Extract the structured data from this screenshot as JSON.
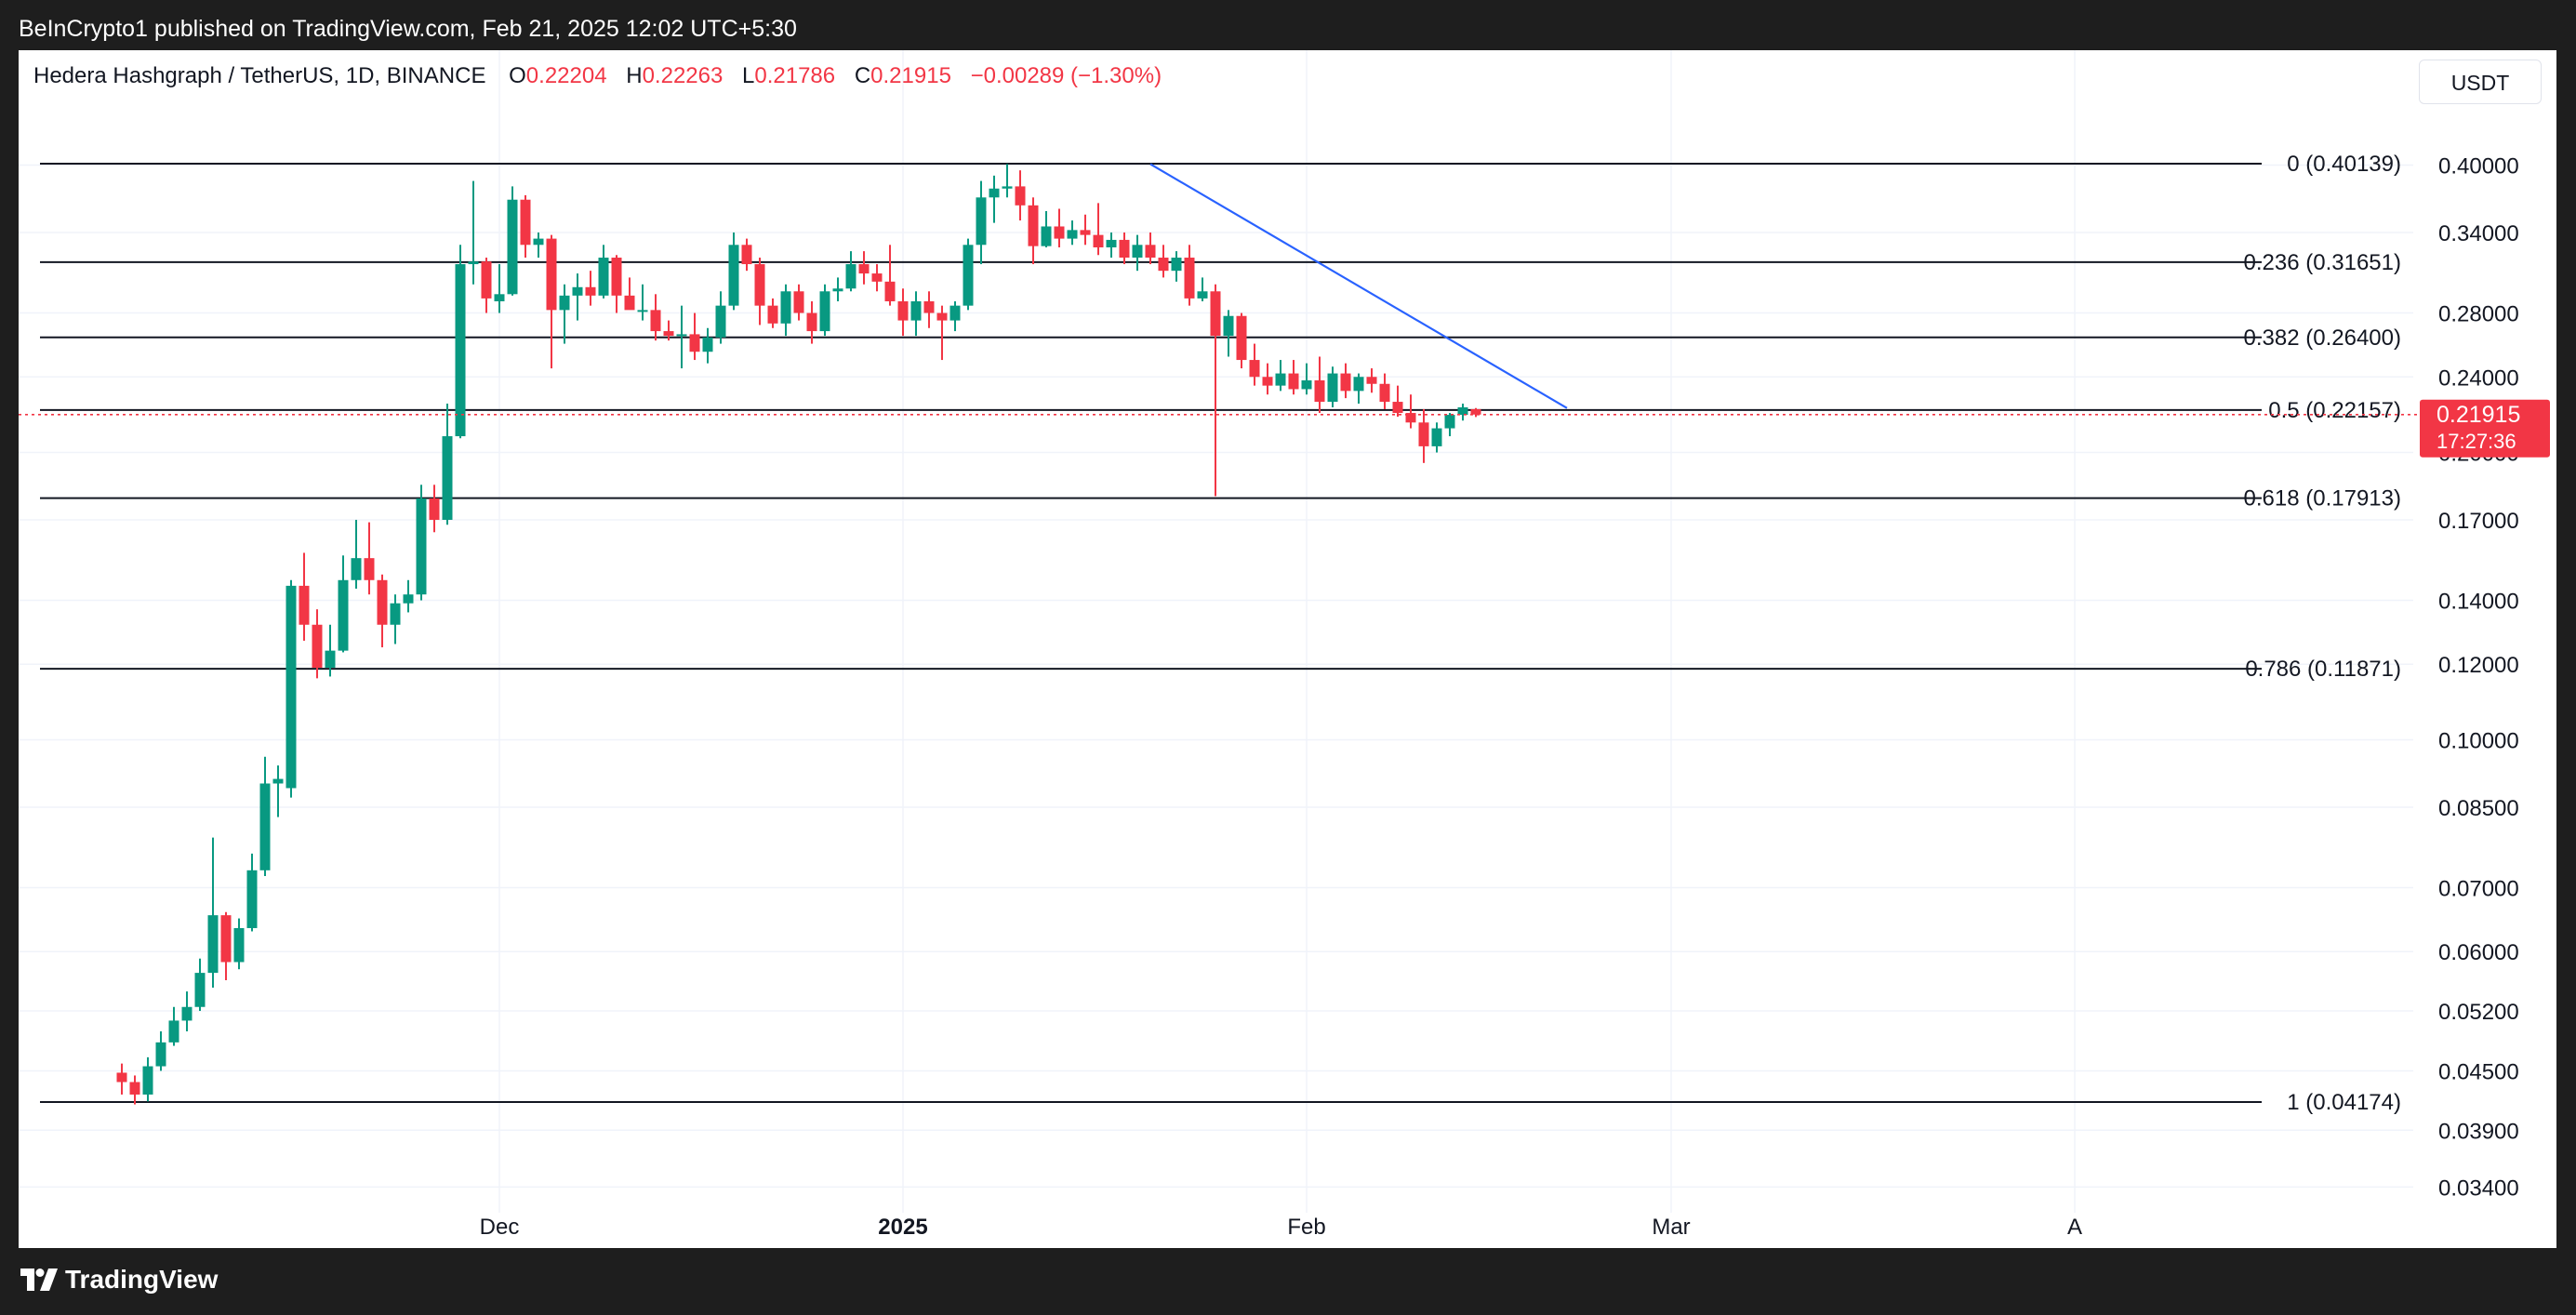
{
  "header": {
    "publisher_line": "BeInCrypto1 published on TradingView.com, Feb 21, 2025 12:02 UTC+5:30"
  },
  "legend": {
    "symbol": "Hedera Hashgraph / TetherUS, 1D, BINANCE",
    "open_label": "O",
    "open": "0.22204",
    "high_label": "H",
    "high": "0.22263",
    "low_label": "L",
    "low": "0.21786",
    "close_label": "C",
    "close": "0.21915",
    "change": "−0.00289 (−1.30%)"
  },
  "currency_button": "USDT",
  "price_tag": {
    "price": "0.21915",
    "countdown": "17:27:36"
  },
  "footer": {
    "brand": "TradingView",
    "logo_icon": "tradingview-logo-icon"
  },
  "colors": {
    "up": "#089981",
    "down": "#f23645",
    "trendline": "#2962ff",
    "fib": "#131722",
    "last_price": "#f23645"
  },
  "chart_data": {
    "type": "candlestick",
    "y_scale": "log",
    "y_ticks": [
      "0.40000",
      "0.34000",
      "0.28000",
      "0.24000",
      "0.20000",
      "0.17000",
      "0.14000",
      "0.12000",
      "0.10000",
      "0.08500",
      "0.07000",
      "0.06000",
      "0.05200",
      "0.04500",
      "0.03900",
      "0.03400"
    ],
    "x_ticks": [
      {
        "label": "Dec",
        "date": "2024-12-01",
        "bold": false
      },
      {
        "label": "2025",
        "date": "2025-01-01",
        "bold": true
      },
      {
        "label": "Feb",
        "date": "2025-02-01",
        "bold": false
      },
      {
        "label": "Mar",
        "date": "2025-03-01",
        "bold": false
      },
      {
        "label": "A",
        "date": "2025-04-01",
        "bold": false
      }
    ],
    "fib_levels": [
      {
        "label": "0 (0.40139)",
        "value": 0.40139
      },
      {
        "label": "0.236 (0.31651)",
        "value": 0.31651
      },
      {
        "label": "0.382 (0.26400)",
        "value": 0.264
      },
      {
        "label": "0.5 (0.22157)",
        "value": 0.22157
      },
      {
        "label": "0.618 (0.17913)",
        "value": 0.17913
      },
      {
        "label": "0.786 (0.11871)",
        "value": 0.11871
      },
      {
        "label": "1 (0.04174)",
        "value": 0.04174
      }
    ],
    "trendline": {
      "from": {
        "date": "2025-01-20",
        "price": 0.401
      },
      "to": {
        "date": "2025-02-21",
        "price": 0.2226
      }
    },
    "last_price": 0.21915,
    "candles": [
      {
        "date": "2024-11-02",
        "o": 0.0448,
        "h": 0.0458,
        "l": 0.0425,
        "c": 0.0438
      },
      {
        "date": "2024-11-03",
        "o": 0.0438,
        "h": 0.0445,
        "l": 0.0415,
        "c": 0.0425
      },
      {
        "date": "2024-11-04",
        "o": 0.0425,
        "h": 0.0465,
        "l": 0.0418,
        "c": 0.0455
      },
      {
        "date": "2024-11-05",
        "o": 0.0455,
        "h": 0.0495,
        "l": 0.045,
        "c": 0.0482
      },
      {
        "date": "2024-11-06",
        "o": 0.0482,
        "h": 0.0525,
        "l": 0.0478,
        "c": 0.0508
      },
      {
        "date": "2024-11-07",
        "o": 0.0508,
        "h": 0.0545,
        "l": 0.0495,
        "c": 0.0525
      },
      {
        "date": "2024-11-08",
        "o": 0.0525,
        "h": 0.059,
        "l": 0.052,
        "c": 0.057
      },
      {
        "date": "2024-11-09",
        "o": 0.057,
        "h": 0.079,
        "l": 0.055,
        "c": 0.0655
      },
      {
        "date": "2024-11-10",
        "o": 0.0655,
        "h": 0.066,
        "l": 0.056,
        "c": 0.0585
      },
      {
        "date": "2024-11-11",
        "o": 0.0585,
        "h": 0.065,
        "l": 0.0575,
        "c": 0.0635
      },
      {
        "date": "2024-11-12",
        "o": 0.0635,
        "h": 0.076,
        "l": 0.063,
        "c": 0.073
      },
      {
        "date": "2024-11-13",
        "o": 0.073,
        "h": 0.096,
        "l": 0.072,
        "c": 0.09
      },
      {
        "date": "2024-11-14",
        "o": 0.09,
        "h": 0.094,
        "l": 0.083,
        "c": 0.091
      },
      {
        "date": "2024-11-15",
        "o": 0.089,
        "h": 0.147,
        "l": 0.087,
        "c": 0.145
      },
      {
        "date": "2024-11-16",
        "o": 0.145,
        "h": 0.157,
        "l": 0.127,
        "c": 0.132
      },
      {
        "date": "2024-11-17",
        "o": 0.132,
        "h": 0.137,
        "l": 0.116,
        "c": 0.119
      },
      {
        "date": "2024-11-18",
        "o": 0.119,
        "h": 0.132,
        "l": 0.1165,
        "c": 0.124
      },
      {
        "date": "2024-11-19",
        "o": 0.124,
        "h": 0.156,
        "l": 0.1235,
        "c": 0.147
      },
      {
        "date": "2024-11-20",
        "o": 0.147,
        "h": 0.17,
        "l": 0.144,
        "c": 0.155
      },
      {
        "date": "2024-11-21",
        "o": 0.155,
        "h": 0.169,
        "l": 0.142,
        "c": 0.147
      },
      {
        "date": "2024-11-22",
        "o": 0.147,
        "h": 0.149,
        "l": 0.125,
        "c": 0.132
      },
      {
        "date": "2024-11-23",
        "o": 0.132,
        "h": 0.142,
        "l": 0.126,
        "c": 0.139
      },
      {
        "date": "2024-11-24",
        "o": 0.139,
        "h": 0.147,
        "l": 0.136,
        "c": 0.142
      },
      {
        "date": "2024-11-25",
        "o": 0.142,
        "h": 0.185,
        "l": 0.14,
        "c": 0.179
      },
      {
        "date": "2024-11-26",
        "o": 0.179,
        "h": 0.185,
        "l": 0.165,
        "c": 0.17
      },
      {
        "date": "2024-11-27",
        "o": 0.17,
        "h": 0.225,
        "l": 0.168,
        "c": 0.208
      },
      {
        "date": "2024-11-28",
        "o": 0.208,
        "h": 0.33,
        "l": 0.207,
        "c": 0.315
      },
      {
        "date": "2024-11-29",
        "o": 0.315,
        "h": 0.385,
        "l": 0.3,
        "c": 0.317
      },
      {
        "date": "2024-11-30",
        "o": 0.317,
        "h": 0.32,
        "l": 0.28,
        "c": 0.29
      },
      {
        "date": "2024-12-01",
        "o": 0.288,
        "h": 0.315,
        "l": 0.28,
        "c": 0.293
      },
      {
        "date": "2024-12-02",
        "o": 0.293,
        "h": 0.38,
        "l": 0.292,
        "c": 0.368
      },
      {
        "date": "2024-12-03",
        "o": 0.368,
        "h": 0.372,
        "l": 0.32,
        "c": 0.33
      },
      {
        "date": "2024-12-04",
        "o": 0.33,
        "h": 0.34,
        "l": 0.32,
        "c": 0.335
      },
      {
        "date": "2024-12-05",
        "o": 0.335,
        "h": 0.338,
        "l": 0.245,
        "c": 0.282
      },
      {
        "date": "2024-12-06",
        "o": 0.282,
        "h": 0.3,
        "l": 0.26,
        "c": 0.292
      },
      {
        "date": "2024-12-07",
        "o": 0.292,
        "h": 0.308,
        "l": 0.275,
        "c": 0.298
      },
      {
        "date": "2024-12-08",
        "o": 0.298,
        "h": 0.31,
        "l": 0.285,
        "c": 0.292
      },
      {
        "date": "2024-12-09",
        "o": 0.292,
        "h": 0.33,
        "l": 0.29,
        "c": 0.32
      },
      {
        "date": "2024-12-10",
        "o": 0.32,
        "h": 0.322,
        "l": 0.28,
        "c": 0.292
      },
      {
        "date": "2024-12-11",
        "o": 0.292,
        "h": 0.305,
        "l": 0.285,
        "c": 0.282
      },
      {
        "date": "2024-12-12",
        "o": 0.282,
        "h": 0.3,
        "l": 0.275,
        "c": 0.282
      },
      {
        "date": "2024-12-13",
        "o": 0.282,
        "h": 0.293,
        "l": 0.262,
        "c": 0.268
      },
      {
        "date": "2024-12-14",
        "o": 0.268,
        "h": 0.275,
        "l": 0.262,
        "c": 0.265
      },
      {
        "date": "2024-12-15",
        "o": 0.265,
        "h": 0.285,
        "l": 0.245,
        "c": 0.266
      },
      {
        "date": "2024-12-16",
        "o": 0.266,
        "h": 0.28,
        "l": 0.25,
        "c": 0.255
      },
      {
        "date": "2024-12-17",
        "o": 0.255,
        "h": 0.27,
        "l": 0.248,
        "c": 0.264
      },
      {
        "date": "2024-12-18",
        "o": 0.264,
        "h": 0.295,
        "l": 0.26,
        "c": 0.285
      },
      {
        "date": "2024-12-19",
        "o": 0.285,
        "h": 0.34,
        "l": 0.282,
        "c": 0.33
      },
      {
        "date": "2024-12-20",
        "o": 0.33,
        "h": 0.335,
        "l": 0.31,
        "c": 0.315
      },
      {
        "date": "2024-12-21",
        "o": 0.315,
        "h": 0.32,
        "l": 0.272,
        "c": 0.285
      },
      {
        "date": "2024-12-22",
        "o": 0.285,
        "h": 0.29,
        "l": 0.27,
        "c": 0.273
      },
      {
        "date": "2024-12-23",
        "o": 0.273,
        "h": 0.3,
        "l": 0.265,
        "c": 0.295
      },
      {
        "date": "2024-12-24",
        "o": 0.295,
        "h": 0.3,
        "l": 0.275,
        "c": 0.28
      },
      {
        "date": "2024-12-25",
        "o": 0.28,
        "h": 0.288,
        "l": 0.26,
        "c": 0.268
      },
      {
        "date": "2024-12-26",
        "o": 0.268,
        "h": 0.3,
        "l": 0.265,
        "c": 0.295
      },
      {
        "date": "2024-12-27",
        "o": 0.295,
        "h": 0.305,
        "l": 0.288,
        "c": 0.297
      },
      {
        "date": "2024-12-28",
        "o": 0.297,
        "h": 0.325,
        "l": 0.295,
        "c": 0.315
      },
      {
        "date": "2024-12-29",
        "o": 0.315,
        "h": 0.325,
        "l": 0.3,
        "c": 0.308
      },
      {
        "date": "2024-12-30",
        "o": 0.308,
        "h": 0.315,
        "l": 0.295,
        "c": 0.302
      },
      {
        "date": "2024-12-31",
        "o": 0.302,
        "h": 0.33,
        "l": 0.285,
        "c": 0.288
      },
      {
        "date": "2025-01-01",
        "o": 0.288,
        "h": 0.297,
        "l": 0.265,
        "c": 0.275
      },
      {
        "date": "2025-01-02",
        "o": 0.275,
        "h": 0.295,
        "l": 0.265,
        "c": 0.288
      },
      {
        "date": "2025-01-03",
        "o": 0.288,
        "h": 0.295,
        "l": 0.27,
        "c": 0.28
      },
      {
        "date": "2025-01-04",
        "o": 0.28,
        "h": 0.285,
        "l": 0.25,
        "c": 0.275
      },
      {
        "date": "2025-01-05",
        "o": 0.275,
        "h": 0.288,
        "l": 0.268,
        "c": 0.285
      },
      {
        "date": "2025-01-06",
        "o": 0.285,
        "h": 0.335,
        "l": 0.282,
        "c": 0.33
      },
      {
        "date": "2025-01-07",
        "o": 0.33,
        "h": 0.385,
        "l": 0.315,
        "c": 0.37
      },
      {
        "date": "2025-01-08",
        "o": 0.37,
        "h": 0.39,
        "l": 0.348,
        "c": 0.378
      },
      {
        "date": "2025-01-09",
        "o": 0.378,
        "h": 0.401,
        "l": 0.37,
        "c": 0.38
      },
      {
        "date": "2025-01-10",
        "o": 0.38,
        "h": 0.395,
        "l": 0.35,
        "c": 0.363
      },
      {
        "date": "2025-01-11",
        "o": 0.363,
        "h": 0.37,
        "l": 0.315,
        "c": 0.329
      },
      {
        "date": "2025-01-12",
        "o": 0.329,
        "h": 0.358,
        "l": 0.328,
        "c": 0.345
      },
      {
        "date": "2025-01-13",
        "o": 0.345,
        "h": 0.36,
        "l": 0.328,
        "c": 0.335
      },
      {
        "date": "2025-01-14",
        "o": 0.335,
        "h": 0.35,
        "l": 0.33,
        "c": 0.342
      },
      {
        "date": "2025-01-15",
        "o": 0.342,
        "h": 0.355,
        "l": 0.33,
        "c": 0.338
      },
      {
        "date": "2025-01-16",
        "o": 0.338,
        "h": 0.365,
        "l": 0.322,
        "c": 0.328
      },
      {
        "date": "2025-01-17",
        "o": 0.328,
        "h": 0.34,
        "l": 0.32,
        "c": 0.334
      },
      {
        "date": "2025-01-18",
        "o": 0.334,
        "h": 0.34,
        "l": 0.315,
        "c": 0.32
      },
      {
        "date": "2025-01-19",
        "o": 0.32,
        "h": 0.338,
        "l": 0.31,
        "c": 0.33
      },
      {
        "date": "2025-01-20",
        "o": 0.33,
        "h": 0.34,
        "l": 0.315,
        "c": 0.32
      },
      {
        "date": "2025-01-21",
        "o": 0.32,
        "h": 0.33,
        "l": 0.305,
        "c": 0.31
      },
      {
        "date": "2025-01-22",
        "o": 0.31,
        "h": 0.325,
        "l": 0.302,
        "c": 0.32
      },
      {
        "date": "2025-01-23",
        "o": 0.32,
        "h": 0.33,
        "l": 0.285,
        "c": 0.29
      },
      {
        "date": "2025-01-24",
        "o": 0.29,
        "h": 0.305,
        "l": 0.288,
        "c": 0.295
      },
      {
        "date": "2025-01-25",
        "o": 0.295,
        "h": 0.3,
        "l": 0.18,
        "c": 0.265
      },
      {
        "date": "2025-01-26",
        "o": 0.265,
        "h": 0.282,
        "l": 0.252,
        "c": 0.278
      },
      {
        "date": "2025-01-27",
        "o": 0.278,
        "h": 0.28,
        "l": 0.245,
        "c": 0.25
      },
      {
        "date": "2025-01-28",
        "o": 0.25,
        "h": 0.26,
        "l": 0.235,
        "c": 0.24
      },
      {
        "date": "2025-01-29",
        "o": 0.24,
        "h": 0.248,
        "l": 0.23,
        "c": 0.235
      },
      {
        "date": "2025-01-30",
        "o": 0.235,
        "h": 0.25,
        "l": 0.232,
        "c": 0.242
      },
      {
        "date": "2025-01-31",
        "o": 0.242,
        "h": 0.25,
        "l": 0.23,
        "c": 0.233
      },
      {
        "date": "2025-02-01",
        "o": 0.233,
        "h": 0.248,
        "l": 0.23,
        "c": 0.238
      },
      {
        "date": "2025-02-02",
        "o": 0.238,
        "h": 0.252,
        "l": 0.22,
        "c": 0.226
      },
      {
        "date": "2025-02-03",
        "o": 0.226,
        "h": 0.246,
        "l": 0.223,
        "c": 0.242
      },
      {
        "date": "2025-02-04",
        "o": 0.242,
        "h": 0.248,
        "l": 0.228,
        "c": 0.232
      },
      {
        "date": "2025-02-05",
        "o": 0.232,
        "h": 0.242,
        "l": 0.225,
        "c": 0.24
      },
      {
        "date": "2025-02-06",
        "o": 0.24,
        "h": 0.245,
        "l": 0.231,
        "c": 0.236
      },
      {
        "date": "2025-02-07",
        "o": 0.236,
        "h": 0.242,
        "l": 0.222,
        "c": 0.226
      },
      {
        "date": "2025-02-08",
        "o": 0.226,
        "h": 0.235,
        "l": 0.218,
        "c": 0.22
      },
      {
        "date": "2025-02-09",
        "o": 0.22,
        "h": 0.23,
        "l": 0.212,
        "c": 0.215
      },
      {
        "date": "2025-02-10",
        "o": 0.215,
        "h": 0.222,
        "l": 0.195,
        "c": 0.203
      },
      {
        "date": "2025-02-11",
        "o": 0.203,
        "h": 0.215,
        "l": 0.2,
        "c": 0.212
      },
      {
        "date": "2025-02-12",
        "o": 0.212,
        "h": 0.22,
        "l": 0.208,
        "c": 0.219
      },
      {
        "date": "2025-02-13",
        "o": 0.219,
        "h": 0.225,
        "l": 0.216,
        "c": 0.223
      },
      {
        "date": "2025-02-14",
        "o": 0.22204,
        "h": 0.22263,
        "l": 0.21786,
        "c": 0.21915
      }
    ]
  }
}
